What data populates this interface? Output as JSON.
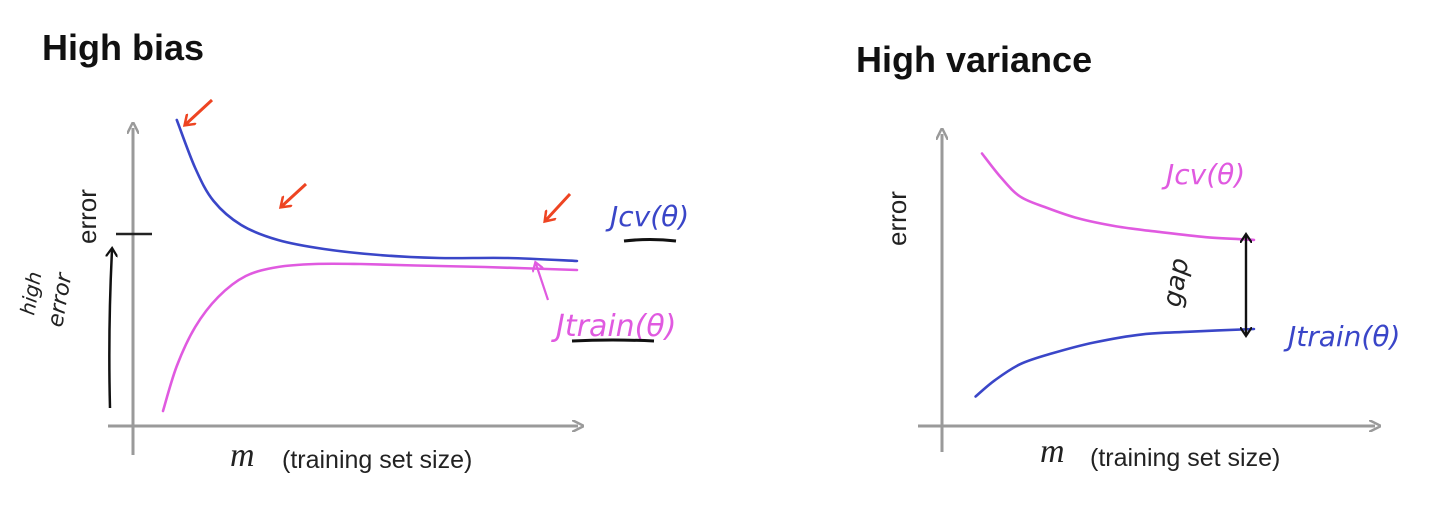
{
  "chart_data": [
    {
      "type": "line",
      "title": "High bias",
      "xlabel_var": "m",
      "xlabel": "(training set size)",
      "ylabel": "error",
      "xlim": [
        0,
        100
      ],
      "ylim": [
        0,
        100
      ],
      "series": [
        {
          "name": "Jcv(θ)",
          "color": "#3a46c8",
          "x": [
            8,
            12,
            16,
            22,
            30,
            40,
            52,
            65,
            80,
            95
          ],
          "y": [
            100,
            84,
            73,
            65,
            60,
            57,
            55,
            54,
            54,
            53
          ]
        },
        {
          "name": "Jtrain(θ)",
          "color": "#e05ae0",
          "x": [
            5,
            8,
            12,
            17,
            23,
            30,
            38,
            48,
            60,
            75,
            95
          ],
          "y": [
            3,
            18,
            31,
            41,
            48,
            51,
            52,
            52,
            51.5,
            51,
            50
          ]
        }
      ],
      "annotations": {
        "gap_note_line1": "high",
        "gap_note_line2": "error"
      }
    },
    {
      "type": "line",
      "title": "High variance",
      "xlabel_var": "m",
      "xlabel": "(training set size)",
      "ylabel": "error",
      "xlim": [
        0,
        100
      ],
      "ylim": [
        0,
        100
      ],
      "series": [
        {
          "name": "Jcv(θ)",
          "color": "#e05ae0",
          "x": [
            10,
            16,
            22,
            30,
            40,
            52,
            65,
            80,
            95
          ],
          "y": [
            95,
            86,
            79,
            75,
            71,
            68,
            66,
            64,
            63
          ]
        },
        {
          "name": "Jtrain(θ)",
          "color": "#3a46c8",
          "x": [
            8,
            14,
            22,
            32,
            45,
            60,
            75,
            95
          ],
          "y": [
            5,
            11,
            17,
            21,
            25,
            28,
            29,
            30
          ]
        }
      ],
      "annotations": {
        "gap_label": "gap"
      }
    }
  ],
  "colors": {
    "axis": "#9a9a9a",
    "arrow_red": "#ee4422",
    "ink": "#222222"
  }
}
